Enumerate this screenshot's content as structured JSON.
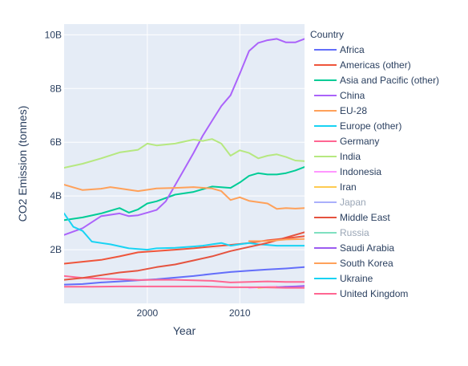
{
  "chart_data": {
    "type": "line",
    "xlabel": "Year",
    "ylabel": "CO2 Emission (tonnes)",
    "xlim": [
      1991,
      2017
    ],
    "ylim": [
      0,
      10.4
    ],
    "x_ticks": [
      2000,
      2010
    ],
    "x_tick_labels": [
      "2000",
      "2010"
    ],
    "y_ticks": [
      2,
      4,
      6,
      8,
      10
    ],
    "y_tick_labels": [
      "2B",
      "4B",
      "6B",
      "8B",
      "10B"
    ],
    "y_units": "billion tonnes",
    "grid": true,
    "legend_title": "Country",
    "legend_position": "right",
    "series": [
      {
        "name": "Africa",
        "color": "#636efa",
        "x": [
          1991,
          1993,
          1995,
          1997,
          1999,
          2001,
          2003,
          2005,
          2007,
          2009,
          2011,
          2013,
          2015,
          2017
        ],
        "y": [
          0.7,
          0.72,
          0.78,
          0.82,
          0.86,
          0.9,
          0.96,
          1.02,
          1.1,
          1.17,
          1.22,
          1.26,
          1.3,
          1.35
        ]
      },
      {
        "name": "Americas (other)",
        "color": "#EF553B",
        "x": [
          1991,
          1993,
          1995,
          1997,
          1999,
          2001,
          2003,
          2005,
          2007,
          2009,
          2011,
          2013,
          2015,
          2017
        ],
        "y": [
          1.48,
          1.55,
          1.62,
          1.75,
          1.9,
          1.95,
          2.0,
          2.05,
          2.12,
          2.18,
          2.25,
          2.35,
          2.42,
          2.5
        ]
      },
      {
        "name": "Asia and Pacific (other)",
        "color": "#00cc96",
        "x": [
          1991,
          1993,
          1995,
          1997,
          1998,
          1999,
          2000,
          2001,
          2003,
          2005,
          2007,
          2009,
          2010,
          2011,
          2012,
          2013,
          2014,
          2015,
          2016,
          2017
        ],
        "y": [
          3.1,
          3.2,
          3.35,
          3.55,
          3.38,
          3.5,
          3.72,
          3.8,
          4.05,
          4.15,
          4.35,
          4.3,
          4.5,
          4.75,
          4.85,
          4.8,
          4.8,
          4.85,
          4.95,
          5.08
        ]
      },
      {
        "name": "China",
        "color": "#ab63fa",
        "x": [
          1991,
          1993,
          1995,
          1997,
          1998,
          1999,
          2000,
          2001,
          2002,
          2003,
          2004,
          2005,
          2006,
          2007,
          2008,
          2009,
          2010,
          2011,
          2012,
          2013,
          2014,
          2015,
          2016,
          2017
        ],
        "y": [
          2.55,
          2.8,
          3.25,
          3.35,
          3.25,
          3.28,
          3.38,
          3.48,
          3.8,
          4.4,
          5.0,
          5.6,
          6.25,
          6.8,
          7.35,
          7.75,
          8.55,
          9.4,
          9.7,
          9.8,
          9.85,
          9.72,
          9.72,
          9.85
        ]
      },
      {
        "name": "EU-28",
        "color": "#FFA15A",
        "x": [
          1991,
          1993,
          1995,
          1996,
          1997,
          1999,
          2001,
          2003,
          2005,
          2007,
          2008,
          2009,
          2010,
          2011,
          2013,
          2014,
          2015,
          2016,
          2017
        ],
        "y": [
          4.42,
          4.22,
          4.27,
          4.33,
          4.28,
          4.18,
          4.28,
          4.3,
          4.33,
          4.28,
          4.18,
          3.85,
          3.95,
          3.82,
          3.72,
          3.52,
          3.55,
          3.53,
          3.55
        ]
      },
      {
        "name": "Europe (other)",
        "color": "#19d3f3",
        "x": [
          1991,
          1992,
          1993,
          1994,
          1996,
          1998,
          2000,
          2001,
          2003,
          2005,
          2006,
          2007,
          2008,
          2009,
          2010,
          2011,
          2012,
          2013,
          2014,
          2015,
          2017
        ],
        "y": [
          3.35,
          2.85,
          2.7,
          2.3,
          2.2,
          2.05,
          2.0,
          2.05,
          2.07,
          2.12,
          2.15,
          2.2,
          2.25,
          2.15,
          2.2,
          2.25,
          2.2,
          2.18,
          2.15,
          2.15,
          2.15
        ]
      },
      {
        "name": "Germany",
        "color": "#FF6692",
        "x": [
          1991,
          1993,
          1995,
          1997,
          1999,
          2001,
          2003,
          2005,
          2007,
          2009,
          2011,
          2013,
          2015,
          2017
        ],
        "y": [
          1.02,
          0.95,
          0.92,
          0.9,
          0.87,
          0.88,
          0.88,
          0.86,
          0.84,
          0.78,
          0.8,
          0.82,
          0.8,
          0.8
        ]
      },
      {
        "name": "India",
        "color": "#B6E880",
        "x": [
          1991,
          1993,
          1995,
          1997,
          1999,
          2000,
          2001,
          2003,
          2005,
          2006,
          2007,
          2008,
          2009,
          2010,
          2011,
          2012,
          2013,
          2014,
          2015,
          2016,
          2017
        ],
        "y": [
          5.05,
          5.2,
          5.4,
          5.62,
          5.72,
          5.95,
          5.88,
          5.95,
          6.1,
          6.05,
          6.12,
          5.95,
          5.5,
          5.7,
          5.6,
          5.4,
          5.5,
          5.55,
          5.45,
          5.32,
          5.3
        ]
      },
      {
        "name": "Indonesia",
        "color": "#FF97FF",
        "x": [
          2011,
          2012,
          2013,
          2014
        ],
        "y": [
          0.58,
          0.6,
          0.62,
          0.63
        ]
      },
      {
        "name": "Iran",
        "color": "#FECB52",
        "x": [
          2012,
          2013,
          2014,
          2015
        ],
        "y": [
          0.58,
          0.6,
          0.6,
          0.62
        ]
      },
      {
        "name": "Japan",
        "color": "#aab0fb",
        "x": [],
        "y": []
      },
      {
        "name": "Middle East",
        "color": "#e5533f",
        "x": [
          1991,
          1993,
          1995,
          1997,
          1999,
          2001,
          2003,
          2005,
          2007,
          2009,
          2011,
          2013,
          2015,
          2017
        ],
        "y": [
          0.88,
          0.95,
          1.05,
          1.15,
          1.22,
          1.35,
          1.45,
          1.6,
          1.75,
          1.95,
          2.1,
          2.25,
          2.45,
          2.65
        ]
      },
      {
        "name": "Russia",
        "color": "#7fe0c0",
        "x": [],
        "y": []
      },
      {
        "name": "Saudi Arabia",
        "color": "#9c5cf0",
        "x": [
          2014,
          2015,
          2016,
          2017
        ],
        "y": [
          0.6,
          0.62,
          0.63,
          0.65
        ]
      },
      {
        "name": "South Korea",
        "color": "#FFA15A",
        "x": [
          2011,
          2013,
          2015,
          2017
        ],
        "y": [
          2.32,
          2.32,
          2.38,
          2.4
        ]
      },
      {
        "name": "Ukraine",
        "color": "#19d3f3",
        "x": [],
        "y": []
      },
      {
        "name": "United Kingdom",
        "color": "#FF6692",
        "x": [
          1991,
          1994,
          1997,
          2000,
          2003,
          2006,
          2009,
          2012,
          2015,
          2017
        ],
        "y": [
          0.62,
          0.62,
          0.63,
          0.63,
          0.63,
          0.63,
          0.6,
          0.6,
          0.58,
          0.58
        ]
      }
    ],
    "legend_muted": [
      "Japan",
      "Russia"
    ]
  }
}
